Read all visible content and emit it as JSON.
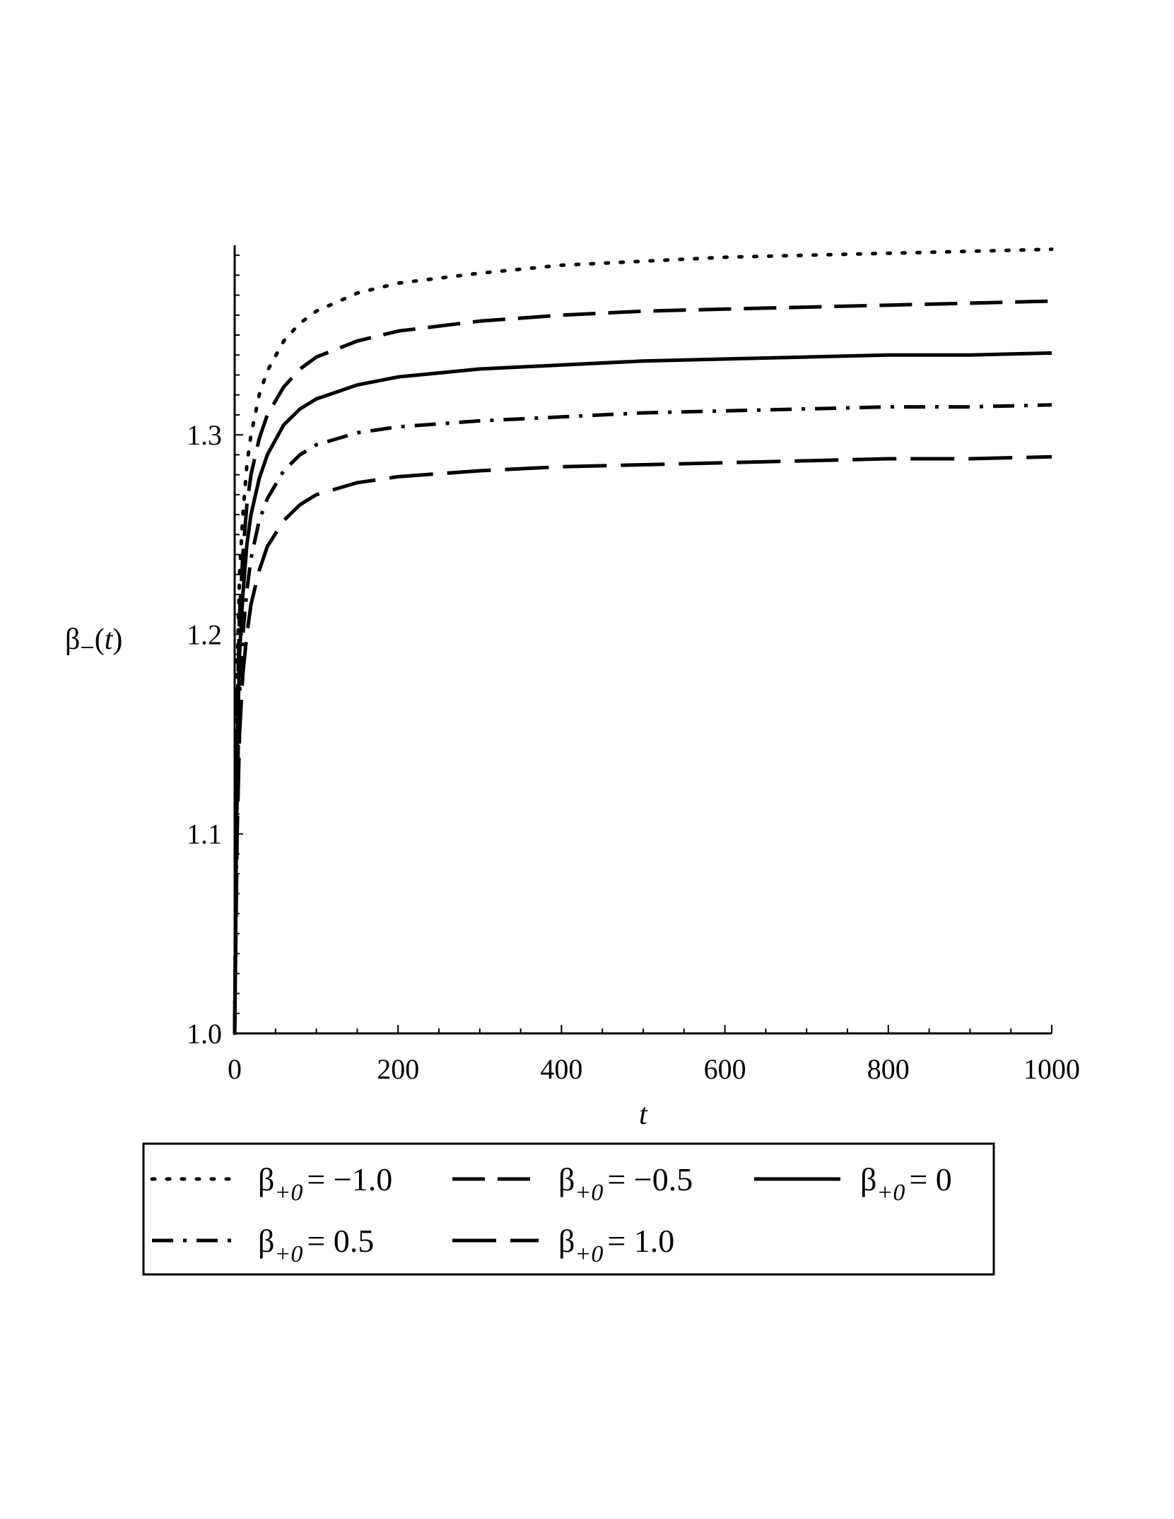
{
  "chart_data": {
    "type": "line",
    "title": "",
    "xlabel": "t",
    "ylabel": {
      "symbol": "β",
      "subscript": "−",
      "argument": "t"
    },
    "xlim": [
      0,
      1000
    ],
    "ylim": [
      1.0,
      1.395
    ],
    "x_ticks": [
      {
        "value": 0,
        "label": "0"
      },
      {
        "value": 200,
        "label": "200"
      },
      {
        "value": 400,
        "label": "400"
      },
      {
        "value": 600,
        "label": "600"
      },
      {
        "value": 800,
        "label": "800"
      },
      {
        "value": 1000,
        "label": "1000"
      }
    ],
    "y_ticks": [
      {
        "value": 1.0,
        "label": "1.0"
      },
      {
        "value": 1.1,
        "label": "1.1"
      },
      {
        "value": 1.2,
        "label": "1.2"
      },
      {
        "value": 1.3,
        "label": "1.3"
      }
    ],
    "grid": false,
    "legend_position": "bottom",
    "series": [
      {
        "symbol": "β",
        "subscript": "+0",
        "value_text": "= −1.0",
        "style": "dotted",
        "x": [
          0,
          3,
          6,
          10,
          15,
          20,
          30,
          40,
          60,
          80,
          100,
          150,
          200,
          300,
          400,
          500,
          600,
          700,
          800,
          900,
          1000
        ],
        "y": [
          1.0,
          1.18,
          1.23,
          1.26,
          1.285,
          1.3,
          1.32,
          1.332,
          1.347,
          1.356,
          1.362,
          1.371,
          1.376,
          1.381,
          1.385,
          1.387,
          1.389,
          1.39,
          1.391,
          1.392,
          1.393
        ]
      },
      {
        "symbol": "β",
        "subscript": "+0",
        "value_text": "= −0.5",
        "style": "dashed",
        "x": [
          0,
          3,
          6,
          10,
          15,
          20,
          30,
          40,
          60,
          80,
          100,
          150,
          200,
          300,
          400,
          500,
          600,
          700,
          800,
          900,
          1000
        ],
        "y": [
          1.0,
          1.16,
          1.21,
          1.24,
          1.265,
          1.28,
          1.298,
          1.31,
          1.324,
          1.333,
          1.339,
          1.347,
          1.352,
          1.357,
          1.36,
          1.362,
          1.363,
          1.364,
          1.365,
          1.366,
          1.367
        ]
      },
      {
        "symbol": "β",
        "subscript": "+0",
        "value_text": "= 0",
        "style": "solid",
        "x": [
          0,
          3,
          6,
          10,
          15,
          20,
          30,
          40,
          60,
          80,
          100,
          150,
          200,
          300,
          400,
          500,
          600,
          700,
          800,
          900,
          1000
        ],
        "y": [
          1.0,
          1.14,
          1.19,
          1.22,
          1.245,
          1.26,
          1.278,
          1.29,
          1.305,
          1.313,
          1.318,
          1.325,
          1.329,
          1.333,
          1.335,
          1.337,
          1.338,
          1.339,
          1.34,
          1.34,
          1.341
        ]
      },
      {
        "symbol": "β",
        "subscript": "+0",
        "value_text": "= 0.5",
        "style": "dash-dot",
        "x": [
          0,
          3,
          6,
          10,
          15,
          20,
          30,
          40,
          60,
          80,
          100,
          150,
          200,
          300,
          400,
          500,
          600,
          700,
          800,
          900,
          1000
        ],
        "y": [
          1.0,
          1.12,
          1.17,
          1.2,
          1.222,
          1.238,
          1.257,
          1.268,
          1.282,
          1.29,
          1.295,
          1.301,
          1.304,
          1.307,
          1.309,
          1.311,
          1.312,
          1.313,
          1.314,
          1.314,
          1.315
        ]
      },
      {
        "symbol": "β",
        "subscript": "+0",
        "value_text": "= 1.0",
        "style": "long-dash",
        "x": [
          0,
          3,
          6,
          10,
          15,
          20,
          30,
          40,
          60,
          80,
          100,
          150,
          200,
          300,
          400,
          500,
          600,
          700,
          800,
          900,
          1000
        ],
        "y": [
          1.0,
          1.1,
          1.15,
          1.18,
          1.2,
          1.215,
          1.232,
          1.244,
          1.257,
          1.265,
          1.27,
          1.276,
          1.279,
          1.282,
          1.284,
          1.285,
          1.286,
          1.287,
          1.288,
          1.288,
          1.289
        ]
      }
    ]
  }
}
